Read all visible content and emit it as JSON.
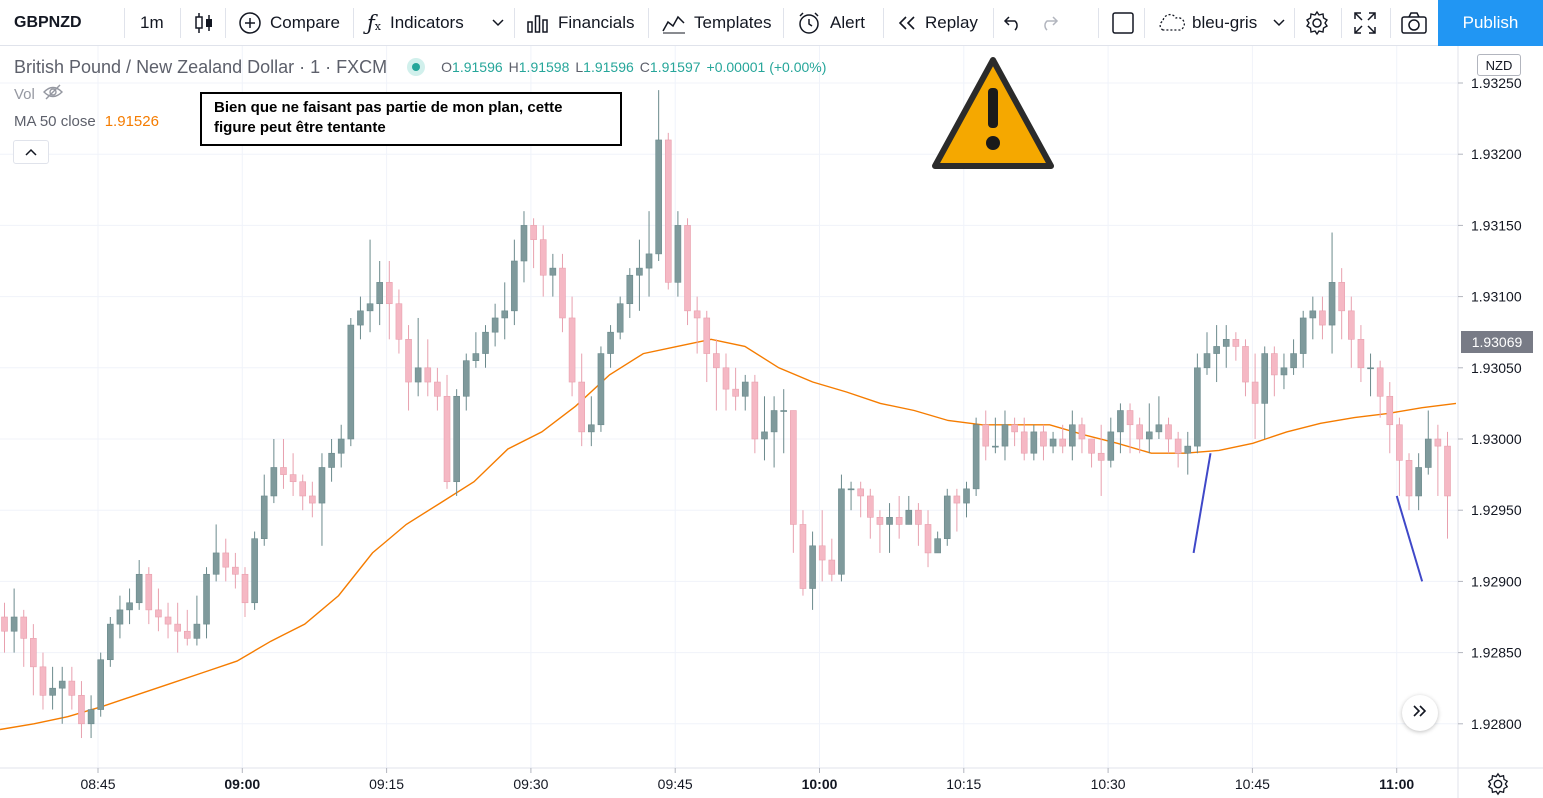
{
  "toolbar": {
    "symbol": "GBPNZD",
    "interval": "1m",
    "compare_label": "Compare",
    "indicators_label": "Indicators",
    "financials_label": "Financials",
    "templates_label": "Templates",
    "alert_label": "Alert",
    "replay_label": "Replay",
    "layout_name": "bleu-gris",
    "publish_label": "Publish"
  },
  "legend": {
    "title": "British Pound / New Zealand Dollar · 1 · FXCM",
    "ohlc": {
      "o_label": "O",
      "o": "1.91596",
      "h_label": "H",
      "h": "1.91598",
      "l_label": "L",
      "l": "1.91596",
      "c_label": "C",
      "c": "1.91597",
      "change": "+0.00001 (+0.00%)"
    },
    "vol_label": "Vol",
    "ma_label": "MA 50 close",
    "ma_value": "1.91526"
  },
  "annotation": {
    "note": "Bien que ne faisant pas partie de mon plan, cette figure peut être tentante"
  },
  "price_axis": {
    "currency": "NZD",
    "last_price": "1.93069"
  },
  "colors": {
    "up": "#7f9a9c",
    "down": "#f5b8c4",
    "ma": "#f57c00",
    "arrow": "#3f48c8",
    "last_price_bg": "#787b86",
    "publish": "#2196f3"
  },
  "icons": {
    "warning": "warning-triangle-icon",
    "settings": "gear-icon",
    "camera": "camera-icon",
    "fullscreen": "fullscreen-icon",
    "scroll": "double-chevron-right-icon"
  },
  "chart_data": {
    "type": "candlestick",
    "symbol": "GBPNZD",
    "interval": "1m",
    "y_ticks": [
      "1.93250",
      "1.93200",
      "1.93150",
      "1.93100",
      "1.93050",
      "1.93000",
      "1.92950",
      "1.92900",
      "1.92850",
      "1.92800"
    ],
    "x_ticks": [
      {
        "label": "08:45",
        "bold": false
      },
      {
        "label": "09:00",
        "bold": true
      },
      {
        "label": "09:15",
        "bold": false
      },
      {
        "label": "09:30",
        "bold": false
      },
      {
        "label": "09:45",
        "bold": false
      },
      {
        "label": "10:00",
        "bold": true
      },
      {
        "label": "10:15",
        "bold": false
      },
      {
        "label": "10:30",
        "bold": false
      },
      {
        "label": "10:45",
        "bold": false
      },
      {
        "label": "11:00",
        "bold": true
      }
    ],
    "ylim": [
      1.92775,
      1.9327
    ],
    "x_start_minute": 524,
    "x_end_minute": 581,
    "ma_series": [
      [
        524,
        1.92796
      ],
      [
        526,
        1.928
      ],
      [
        528,
        1.92805
      ],
      [
        530,
        1.92812
      ],
      [
        532,
        1.9282
      ],
      [
        534,
        1.92828
      ],
      [
        536,
        1.92836
      ],
      [
        538,
        1.92844
      ],
      [
        540,
        1.92858
      ],
      [
        542,
        1.9287
      ],
      [
        544,
        1.9289
      ],
      [
        546,
        1.9292
      ],
      [
        548,
        1.9294
      ],
      [
        550,
        1.92955
      ],
      [
        552,
        1.9297
      ],
      [
        554,
        1.92993
      ],
      [
        556,
        1.93005
      ],
      [
        558,
        1.93023
      ],
      [
        560,
        1.93045
      ],
      [
        562,
        1.9306
      ],
      [
        564,
        1.93065
      ],
      [
        566,
        1.9307
      ],
      [
        568,
        1.93065
      ],
      [
        570,
        1.9305
      ],
      [
        572,
        1.9304
      ],
      [
        574,
        1.93033
      ],
      [
        576,
        1.93025
      ],
      [
        578,
        1.9302
      ],
      [
        580,
        1.93013
      ],
      [
        582,
        1.9301
      ],
      [
        584,
        1.9301
      ],
      [
        586,
        1.9301
      ],
      [
        588,
        1.93003
      ],
      [
        590,
        1.92997
      ],
      [
        592,
        1.9299
      ],
      [
        594,
        1.9299
      ],
      [
        596,
        1.92992
      ],
      [
        598,
        1.92997
      ],
      [
        600,
        1.93005
      ],
      [
        602,
        1.93011
      ],
      [
        604,
        1.93015
      ],
      [
        606,
        1.93018
      ],
      [
        608,
        1.93022
      ],
      [
        610,
        1.93025
      ]
    ],
    "candles": [
      [
        1.92875,
        1.92865,
        1.92885,
        1.9285
      ],
      [
        1.92865,
        1.92875,
        1.92895,
        1.9285
      ],
      [
        1.92875,
        1.9286,
        1.9288,
        1.9284
      ],
      [
        1.9286,
        1.9284,
        1.9287,
        1.9282
      ],
      [
        1.9284,
        1.9282,
        1.9285,
        1.9281
      ],
      [
        1.9282,
        1.92825,
        1.9284,
        1.9281
      ],
      [
        1.92825,
        1.9283,
        1.9284,
        1.928
      ],
      [
        1.9283,
        1.9282,
        1.9284,
        1.9281
      ],
      [
        1.9282,
        1.928,
        1.9283,
        1.9279
      ],
      [
        1.928,
        1.9281,
        1.9282,
        1.9279
      ],
      [
        1.9281,
        1.92845,
        1.9285,
        1.92805
      ],
      [
        1.92845,
        1.9287,
        1.92875,
        1.9284
      ],
      [
        1.9287,
        1.9288,
        1.9289,
        1.9286
      ],
      [
        1.9288,
        1.92885,
        1.92895,
        1.9287
      ],
      [
        1.92885,
        1.92905,
        1.92915,
        1.9288
      ],
      [
        1.92905,
        1.9288,
        1.9291,
        1.9287
      ],
      [
        1.9288,
        1.92875,
        1.92895,
        1.92865
      ],
      [
        1.92875,
        1.9287,
        1.92885,
        1.9286
      ],
      [
        1.9287,
        1.92865,
        1.92885,
        1.9285
      ],
      [
        1.92865,
        1.9286,
        1.9288,
        1.92855
      ],
      [
        1.9286,
        1.9287,
        1.9289,
        1.92855
      ],
      [
        1.9287,
        1.92905,
        1.9291,
        1.9286
      ],
      [
        1.92905,
        1.9292,
        1.9294,
        1.929
      ],
      [
        1.9292,
        1.9291,
        1.9293,
        1.929
      ],
      [
        1.9291,
        1.92905,
        1.9292,
        1.92895
      ],
      [
        1.92905,
        1.92885,
        1.9291,
        1.92875
      ],
      [
        1.92885,
        1.9293,
        1.92935,
        1.9288
      ],
      [
        1.9293,
        1.9296,
        1.92975,
        1.92925
      ],
      [
        1.9296,
        1.9298,
        1.93,
        1.92955
      ],
      [
        1.9298,
        1.92975,
        1.93,
        1.92965
      ],
      [
        1.92975,
        1.9297,
        1.9299,
        1.9296
      ],
      [
        1.9297,
        1.9296,
        1.92975,
        1.9295
      ],
      [
        1.9296,
        1.92955,
        1.9297,
        1.92945
      ],
      [
        1.92955,
        1.9298,
        1.9299,
        1.92925
      ],
      [
        1.9298,
        1.9299,
        1.93,
        1.9297
      ],
      [
        1.9299,
        1.93,
        1.9301,
        1.9298
      ],
      [
        1.93,
        1.9308,
        1.93085,
        1.92995
      ],
      [
        1.9308,
        1.9309,
        1.931,
        1.9307
      ],
      [
        1.9309,
        1.93095,
        1.9314,
        1.93075
      ],
      [
        1.93095,
        1.9311,
        1.93125,
        1.9308
      ],
      [
        1.9311,
        1.93095,
        1.93125,
        1.9307
      ],
      [
        1.93095,
        1.9307,
        1.93105,
        1.9306
      ],
      [
        1.9307,
        1.9304,
        1.9308,
        1.9302
      ],
      [
        1.9304,
        1.9305,
        1.93085,
        1.9303
      ],
      [
        1.9305,
        1.9304,
        1.9307,
        1.9303
      ],
      [
        1.9304,
        1.9303,
        1.9305,
        1.9302
      ],
      [
        1.9303,
        1.9297,
        1.93045,
        1.92965
      ],
      [
        1.9297,
        1.9303,
        1.93035,
        1.9296
      ],
      [
        1.9303,
        1.93055,
        1.9306,
        1.9302
      ],
      [
        1.93055,
        1.9306,
        1.93075,
        1.9305
      ],
      [
        1.9306,
        1.93075,
        1.9308,
        1.9305
      ],
      [
        1.93075,
        1.93085,
        1.93095,
        1.93065
      ],
      [
        1.93085,
        1.9309,
        1.9311,
        1.9307
      ],
      [
        1.9309,
        1.93125,
        1.9314,
        1.9308
      ],
      [
        1.93125,
        1.9315,
        1.9316,
        1.9311
      ],
      [
        1.9315,
        1.9314,
        1.93155,
        1.9312
      ],
      [
        1.9314,
        1.93115,
        1.9315,
        1.931
      ],
      [
        1.93115,
        1.9312,
        1.9313,
        1.931
      ],
      [
        1.9312,
        1.93085,
        1.9313,
        1.93075
      ],
      [
        1.93085,
        1.9304,
        1.931,
        1.9303
      ],
      [
        1.9304,
        1.93005,
        1.9306,
        1.92995
      ],
      [
        1.93005,
        1.9301,
        1.9303,
        1.92995
      ],
      [
        1.9301,
        1.9306,
        1.93065,
        1.93005
      ],
      [
        1.9306,
        1.93075,
        1.9308,
        1.9305
      ],
      [
        1.93075,
        1.93095,
        1.931,
        1.9307
      ],
      [
        1.93095,
        1.93115,
        1.9312,
        1.93085
      ],
      [
        1.93115,
        1.9312,
        1.9314,
        1.9309
      ],
      [
        1.9312,
        1.9313,
        1.9316,
        1.931
      ],
      [
        1.9313,
        1.9321,
        1.93245,
        1.93125
      ],
      [
        1.9321,
        1.9311,
        1.93215,
        1.93105
      ],
      [
        1.9311,
        1.9315,
        1.9316,
        1.931
      ],
      [
        1.9315,
        1.9309,
        1.93155,
        1.9308
      ],
      [
        1.9309,
        1.93085,
        1.931,
        1.9306
      ],
      [
        1.93085,
        1.9306,
        1.9309,
        1.9304
      ],
      [
        1.9306,
        1.9305,
        1.9307,
        1.9302
      ],
      [
        1.9305,
        1.93035,
        1.9306,
        1.9302
      ],
      [
        1.93035,
        1.9303,
        1.9305,
        1.9302
      ],
      [
        1.9303,
        1.9304,
        1.93045,
        1.9302
      ],
      [
        1.9304,
        1.93,
        1.93045,
        1.9299
      ],
      [
        1.93,
        1.93005,
        1.9303,
        1.92985
      ],
      [
        1.93005,
        1.9302,
        1.9303,
        1.9298
      ],
      [
        1.9302,
        1.9302,
        1.93035,
        1.9299
      ],
      [
        1.9302,
        1.9294,
        1.9302,
        1.9292
      ],
      [
        1.9294,
        1.92895,
        1.9295,
        1.9289
      ],
      [
        1.92895,
        1.92925,
        1.92935,
        1.9288
      ],
      [
        1.92925,
        1.92915,
        1.9295,
        1.929
      ],
      [
        1.92915,
        1.92905,
        1.9293,
        1.929
      ],
      [
        1.92905,
        1.92965,
        1.92975,
        1.929
      ],
      [
        1.92965,
        1.92965,
        1.9297,
        1.9295
      ],
      [
        1.92965,
        1.9296,
        1.9297,
        1.92945
      ],
      [
        1.9296,
        1.92945,
        1.92965,
        1.9293
      ],
      [
        1.92945,
        1.9294,
        1.9295,
        1.9292
      ],
      [
        1.9294,
        1.92945,
        1.92955,
        1.9292
      ],
      [
        1.92945,
        1.9294,
        1.9296,
        1.9293
      ],
      [
        1.9294,
        1.9295,
        1.9296,
        1.9294
      ],
      [
        1.9295,
        1.9294,
        1.92955,
        1.92925
      ],
      [
        1.9294,
        1.9292,
        1.9295,
        1.9291
      ],
      [
        1.9292,
        1.9293,
        1.92935,
        1.9292
      ],
      [
        1.9293,
        1.9296,
        1.92965,
        1.92925
      ],
      [
        1.9296,
        1.92955,
        1.92965,
        1.92935
      ],
      [
        1.92955,
        1.92965,
        1.9297,
        1.92945
      ],
      [
        1.92965,
        1.9301,
        1.93015,
        1.9296
      ],
      [
        1.9301,
        1.92995,
        1.9302,
        1.92985
      ],
      [
        1.92995,
        1.92995,
        1.93015,
        1.9299
      ],
      [
        1.92995,
        1.9301,
        1.9302,
        1.92985
      ],
      [
        1.9301,
        1.93005,
        1.93015,
        1.92995
      ],
      [
        1.93005,
        1.9299,
        1.93015,
        1.92985
      ],
      [
        1.9299,
        1.93005,
        1.9301,
        1.92985
      ],
      [
        1.93005,
        1.92995,
        1.9301,
        1.92985
      ],
      [
        1.92995,
        1.93,
        1.93005,
        1.9299
      ],
      [
        1.93,
        1.92995,
        1.9301,
        1.9299
      ],
      [
        1.92995,
        1.9301,
        1.9302,
        1.92985
      ],
      [
        1.9301,
        1.93,
        1.93015,
        1.9299
      ],
      [
        1.93,
        1.9299,
        1.93,
        1.9298
      ],
      [
        1.9299,
        1.92985,
        1.9301,
        1.9296
      ],
      [
        1.92985,
        1.93005,
        1.93015,
        1.9298
      ],
      [
        1.93005,
        1.9302,
        1.93025,
        1.9299
      ],
      [
        1.9302,
        1.9301,
        1.93025,
        1.9299
      ],
      [
        1.9301,
        1.93,
        1.93015,
        1.9299
      ],
      [
        1.93,
        1.93005,
        1.93025,
        1.9299
      ],
      [
        1.93005,
        1.9301,
        1.9303,
        1.93
      ],
      [
        1.9301,
        1.93,
        1.93015,
        1.9299
      ],
      [
        1.93,
        1.9299,
        1.93005,
        1.9298
      ],
      [
        1.9299,
        1.92995,
        1.93005,
        1.92975
      ],
      [
        1.92995,
        1.9305,
        1.9306,
        1.9299
      ],
      [
        1.9305,
        1.9306,
        1.93075,
        1.93045
      ],
      [
        1.9306,
        1.93065,
        1.9308,
        1.9304
      ],
      [
        1.93065,
        1.9307,
        1.9308,
        1.9305
      ],
      [
        1.9307,
        1.93065,
        1.93075,
        1.93055
      ],
      [
        1.93065,
        1.9304,
        1.9307,
        1.9303
      ],
      [
        1.9304,
        1.93025,
        1.9306,
        1.93
      ],
      [
        1.93025,
        1.9306,
        1.93065,
        1.93
      ],
      [
        1.9306,
        1.93045,
        1.93065,
        1.9303
      ],
      [
        1.93045,
        1.9305,
        1.9306,
        1.93035
      ],
      [
        1.9305,
        1.9306,
        1.9307,
        1.93045
      ],
      [
        1.9306,
        1.93085,
        1.9309,
        1.9305
      ],
      [
        1.93085,
        1.9309,
        1.931,
        1.9307
      ],
      [
        1.9309,
        1.9308,
        1.931,
        1.9307
      ],
      [
        1.9308,
        1.9311,
        1.93145,
        1.9306
      ],
      [
        1.9311,
        1.9309,
        1.9312,
        1.9307
      ],
      [
        1.9309,
        1.9307,
        1.931,
        1.9305
      ],
      [
        1.9307,
        1.9305,
        1.9308,
        1.9304
      ],
      [
        1.9305,
        1.9305,
        1.9306,
        1.9303
      ],
      [
        1.9305,
        1.9303,
        1.93055,
        1.93015
      ],
      [
        1.9303,
        1.9301,
        1.9304,
        1.9299
      ],
      [
        1.9301,
        1.92985,
        1.93015,
        1.9296
      ],
      [
        1.92985,
        1.9296,
        1.9299,
        1.9295
      ],
      [
        1.9296,
        1.9298,
        1.9299,
        1.9295
      ],
      [
        1.9298,
        1.93,
        1.9302,
        1.92975
      ],
      [
        1.93,
        1.92995,
        1.9301,
        1.9296
      ],
      [
        1.92995,
        1.9296,
        1.93005,
        1.9293
      ],
      [
        1.9296,
        1.9295,
        1.9298,
        1.9294
      ],
      [
        1.9295,
        1.9299,
        1.92995,
        1.92945
      ],
      [
        1.9299,
        1.9299,
        1.93,
        1.92985
      ],
      [
        1.9299,
        1.9301,
        1.93015,
        1.92985
      ],
      [
        1.9301,
        1.93025,
        1.93035,
        1.93005
      ],
      [
        1.93025,
        1.9304,
        1.9305,
        1.93015
      ],
      [
        1.9304,
        1.93065,
        1.9307,
        1.9303
      ]
    ],
    "arrows": [
      {
        "from": [
          594.5,
          1.9292
        ],
        "to": [
          595.5,
          1.9299
        ]
      },
      {
        "from": [
          606.5,
          1.9296
        ],
        "to": [
          608.0,
          1.929
        ]
      }
    ]
  }
}
